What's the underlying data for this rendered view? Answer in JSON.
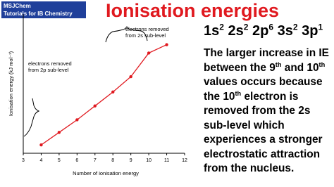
{
  "logo": {
    "name": "MSJChem",
    "tagline": "Tutorials for IB Chemistry"
  },
  "header": {
    "title": "Ionisation energies"
  },
  "configuration": [
    "1s",
    "2",
    " 2s",
    "2",
    " 2p",
    "6",
    " 3s",
    "2",
    " 3p",
    "1"
  ],
  "body": [
    [
      "The larger increase in IE"
    ],
    [
      "between the 9",
      "th",
      " and 10",
      "th"
    ],
    [
      "values occurs because"
    ],
    [
      "the 10",
      "th",
      " electron is"
    ],
    [
      "removed from the 2s"
    ],
    [
      "sub-level which"
    ],
    [
      "experiences a stronger"
    ],
    [
      "electrostatic attraction"
    ],
    [
      "from the nucleus."
    ]
  ],
  "chart_data": {
    "type": "line",
    "x_label": "Number of ionisation energy",
    "y_label": "Ionisation energy (kJ mol⁻¹)",
    "x": [
      4,
      5,
      6,
      7,
      8,
      9,
      10,
      11
    ],
    "values": [
      6,
      15,
      24,
      34,
      44,
      55,
      72,
      78
    ],
    "color": "#e0191f",
    "xlim": [
      3,
      12
    ],
    "xticks": [
      3,
      4,
      5,
      6,
      7,
      8,
      9,
      10,
      11,
      12
    ],
    "ylim": [
      0,
      100
    ],
    "annotations": [
      "electrons removed from 2p sub-level",
      "electrons removed from 2s sub-level"
    ]
  }
}
